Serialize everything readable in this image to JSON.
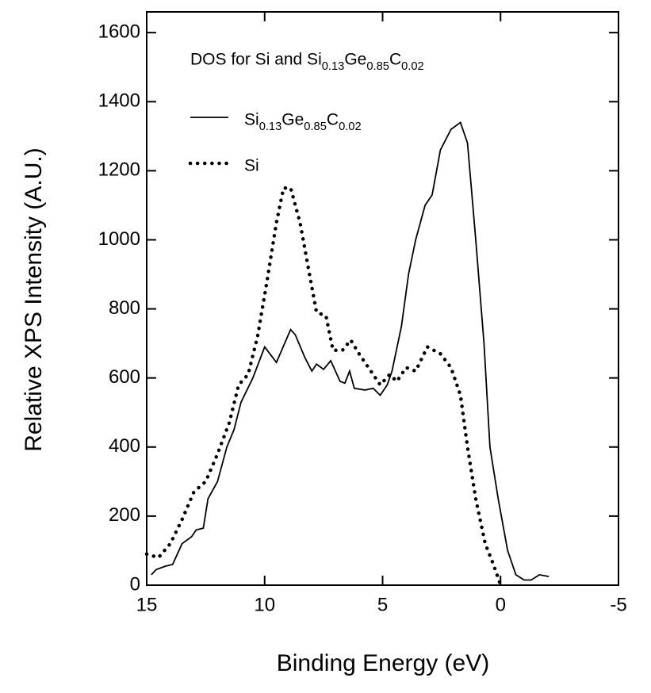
{
  "chart_data": {
    "type": "line",
    "title": "DOS for Si and Si0.13Ge0.85C0.02",
    "x_label": "Binding Energy (eV)",
    "y_label": "Relative XPS Intensity (A.U.)",
    "xlim": [
      15,
      -5
    ],
    "xticks": [
      15,
      10,
      5,
      0,
      -5
    ],
    "ylim": [
      0,
      1660
    ],
    "yticks": [
      0,
      200,
      400,
      600,
      800,
      1000,
      1200,
      1400,
      1600
    ],
    "legend": "upper-left",
    "series": [
      {
        "name": "Si0.13Ge0.85C0.02",
        "color": "#000000",
        "line_style": "solid",
        "x": [
          14.8,
          14.6,
          14.2,
          13.9,
          13.5,
          13.1,
          12.9,
          12.6,
          12.4,
          12.0,
          11.6,
          11.3,
          11.0,
          10.5,
          10.0,
          9.5,
          8.9,
          8.7,
          8.3,
          8.0,
          7.8,
          7.5,
          7.2,
          6.8,
          6.6,
          6.4,
          6.2,
          5.75,
          5.4,
          5.1,
          4.8,
          4.6,
          4.2,
          3.9,
          3.6,
          3.2,
          2.9,
          2.55,
          2.1,
          1.7,
          1.4,
          1.05,
          0.7,
          0.45,
          0.1,
          -0.3,
          -0.65,
          -1.0,
          -1.3,
          -1.65,
          -2.05
        ],
        "values": [
          30,
          45,
          55,
          60,
          120,
          140,
          160,
          165,
          250,
          300,
          400,
          450,
          530,
          600,
          690,
          645,
          740,
          725,
          660,
          620,
          640,
          625,
          650,
          590,
          585,
          620,
          570,
          565,
          570,
          550,
          580,
          620,
          750,
          900,
          1000,
          1100,
          1130,
          1260,
          1320,
          1340,
          1280,
          1000,
          700,
          400,
          250,
          100,
          30,
          15,
          15,
          30,
          25
        ]
      },
      {
        "name": "Si",
        "color": "#000000",
        "line_style": "dotted",
        "x": [
          15.0,
          14.5,
          14.0,
          13.5,
          13.0,
          12.5,
          12.0,
          11.5,
          11.1,
          10.7,
          10.3,
          9.9,
          9.5,
          9.2,
          8.9,
          8.5,
          8.1,
          7.8,
          7.4,
          7.1,
          6.7,
          6.35,
          6.0,
          5.6,
          5.1,
          4.7,
          4.4,
          4.0,
          3.6,
          3.1,
          2.55,
          2.1,
          1.7,
          1.4,
          1.05,
          0.65,
          0.3,
          0.0
        ],
        "values": [
          90,
          80,
          120,
          190,
          270,
          300,
          380,
          470,
          580,
          610,
          720,
          880,
          1050,
          1150,
          1150,
          1050,
          900,
          790,
          780,
          680,
          680,
          710,
          670,
          630,
          580,
          610,
          590,
          630,
          620,
          690,
          670,
          630,
          550,
          400,
          250,
          120,
          60,
          0
        ]
      }
    ]
  }
}
